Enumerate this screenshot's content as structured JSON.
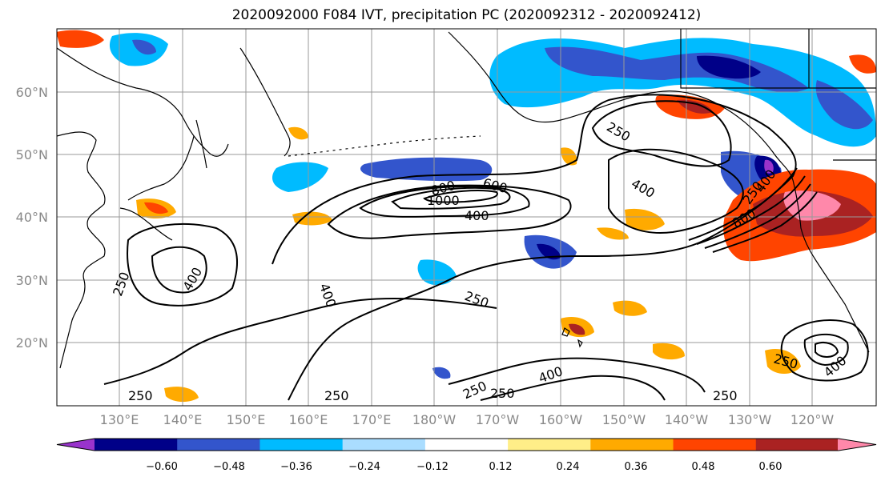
{
  "title": "2020092000 F084 IVT, precipitation PC (2020092312 - 2020092412)",
  "latitude_labels": [
    "60°N",
    "50°N",
    "40°N",
    "30°N",
    "20°N"
  ],
  "longitude_labels": [
    "130°E",
    "140°E",
    "150°E",
    "160°E",
    "170°E",
    "180°W",
    "170°W",
    "160°W",
    "150°W",
    "140°W",
    "130°W",
    "120°W"
  ],
  "colorbar": {
    "colors": [
      "#9933cc",
      "#000088",
      "#3355cc",
      "#00bbff",
      "#aaddff",
      "#ffffff",
      "#ffee88",
      "#ffaa00",
      "#ff4400",
      "#aa2222",
      "#ff88aa"
    ],
    "tick_labels": [
      "−0.60",
      "−0.48",
      "−0.36",
      "−0.24",
      "−0.12",
      "0.12",
      "0.24",
      "0.36",
      "0.48",
      "0.60"
    ]
  },
  "contour_labels": [
    "250",
    "250",
    "400",
    "400",
    "800",
    "600",
    "1000",
    "400",
    "250",
    "400",
    "250",
    "400",
    "800",
    "250",
    "400",
    "250",
    "250",
    "250",
    "400",
    "250",
    "250"
  ],
  "colors": {
    "land_outline": "#000000",
    "contour": "#000000",
    "grid": "#999999",
    "label_gray": "#888888"
  }
}
